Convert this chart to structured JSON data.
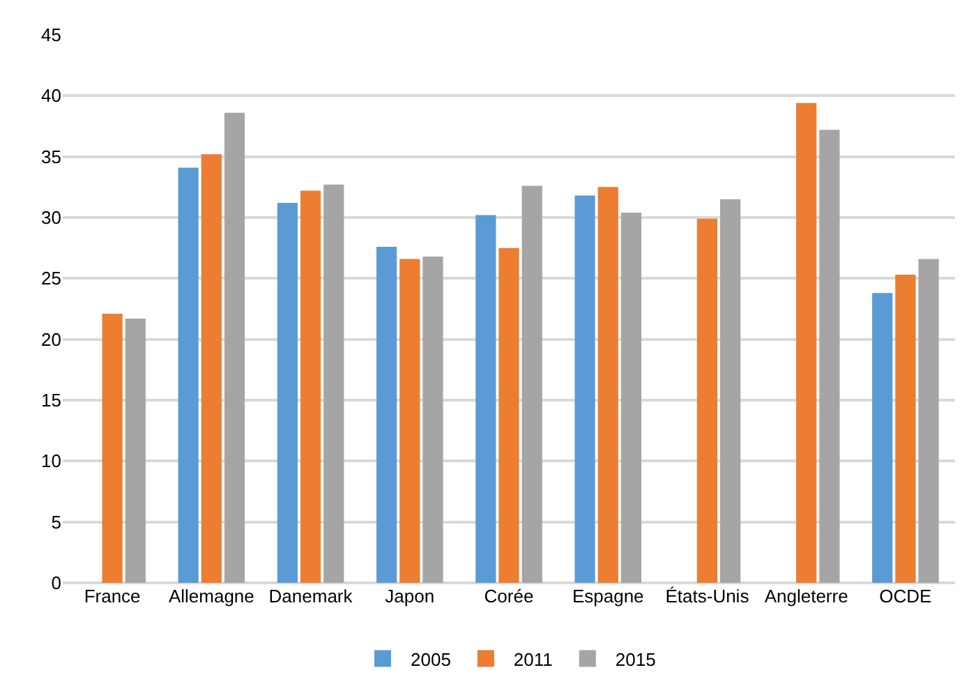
{
  "chart_data": {
    "type": "bar",
    "categories": [
      "France",
      "Allemagne",
      "Danemark",
      "Japon",
      "Corée",
      "Espagne",
      "États-Unis",
      "Angleterre",
      "OCDE"
    ],
    "series": [
      {
        "name": "2005",
        "color": "#5b9bd5",
        "values": [
          null,
          34.1,
          31.2,
          27.6,
          30.2,
          31.8,
          null,
          null,
          23.8
        ]
      },
      {
        "name": "2011",
        "color": "#ed7d31",
        "values": [
          22.1,
          35.2,
          32.2,
          26.6,
          27.5,
          32.5,
          29.9,
          39.4,
          25.3
        ]
      },
      {
        "name": "2015",
        "color": "#a5a5a5",
        "values": [
          21.7,
          38.6,
          32.7,
          26.8,
          32.6,
          30.4,
          31.5,
          37.2,
          26.6
        ]
      }
    ],
    "ylim": [
      0,
      45
    ],
    "yticks": [
      0,
      5,
      10,
      15,
      20,
      25,
      30,
      35,
      40,
      45
    ],
    "grid": "y",
    "legend": "bottom"
  }
}
